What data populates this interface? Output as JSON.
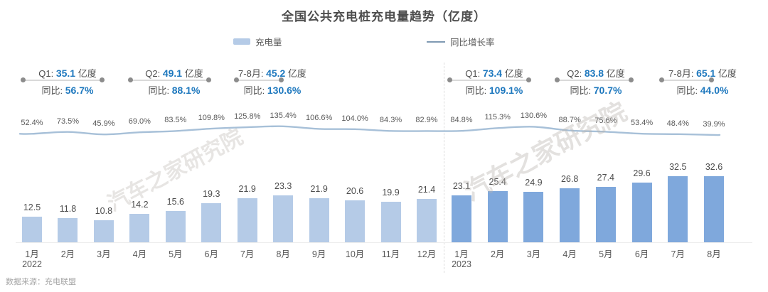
{
  "title": "全国公共充电桩充电量趋势（亿度）",
  "legend": {
    "bar_label": "充电量",
    "line_label": "同比增长率"
  },
  "annotations": [
    {
      "prefix": "Q1: ",
      "value": "35.1",
      "unit": " 亿度",
      "yoy_prefix": "同比: ",
      "yoy": "56.7%"
    },
    {
      "prefix": "Q2: ",
      "value": "49.1",
      "unit": " 亿度",
      "yoy_prefix": "同比: ",
      "yoy": "88.1%"
    },
    {
      "prefix": "7-8月: ",
      "value": "45.2",
      "unit": " 亿度",
      "yoy_prefix": "同比: ",
      "yoy": "130.6%"
    },
    {
      "prefix": "Q1: ",
      "value": "73.4",
      "unit": " 亿度",
      "yoy_prefix": "同比: ",
      "yoy": "109.1%"
    },
    {
      "prefix": "Q2: ",
      "value": "83.8",
      "unit": " 亿度",
      "yoy_prefix": "同比: ",
      "yoy": "70.7%"
    },
    {
      "prefix": "7-8月: ",
      "value": "65.1",
      "unit": " 亿度",
      "yoy_prefix": "同比: ",
      "yoy": "44.0%"
    }
  ],
  "footer": {
    "source": "数据来源：充电联盟"
  },
  "watermark": "汽车之家研究院",
  "colors": {
    "bar_2022": "#b5cbe7",
    "bar_2023": "#7fa8dc",
    "line": "#a7c0d8",
    "accent_text": "#1e78be",
    "dark_text": "#4d4d4d"
  },
  "chart_data": {
    "type": "bar+line",
    "title": "全国公共充电桩充电量趋势（亿度）",
    "categories": [
      "1月",
      "2月",
      "3月",
      "4月",
      "5月",
      "6月",
      "7月",
      "8月",
      "9月",
      "10月",
      "11月",
      "12月",
      "1月",
      "2月",
      "3月",
      "4月",
      "5月",
      "6月",
      "7月",
      "8月"
    ],
    "year_groups": [
      {
        "year": "2022",
        "start_index": 0,
        "months": 12
      },
      {
        "year": "2023",
        "start_index": 12,
        "months": 8
      }
    ],
    "series": [
      {
        "name": "充电量",
        "type": "bar",
        "unit": "亿度",
        "values": [
          12.5,
          11.8,
          10.8,
          14.2,
          15.6,
          19.3,
          21.9,
          23.3,
          21.9,
          20.6,
          19.9,
          21.4,
          23.1,
          25.4,
          24.9,
          26.8,
          27.4,
          29.6,
          32.5,
          32.6
        ]
      },
      {
        "name": "同比增长率",
        "type": "line",
        "unit": "%",
        "values": [
          52.4,
          73.5,
          45.9,
          69.0,
          83.5,
          109.8,
          125.8,
          135.4,
          106.6,
          104.0,
          84.3,
          82.9,
          84.8,
          115.3,
          130.6,
          88.7,
          75.6,
          53.4,
          48.4,
          39.9
        ]
      }
    ],
    "legend_position": "top",
    "grid": false
  }
}
